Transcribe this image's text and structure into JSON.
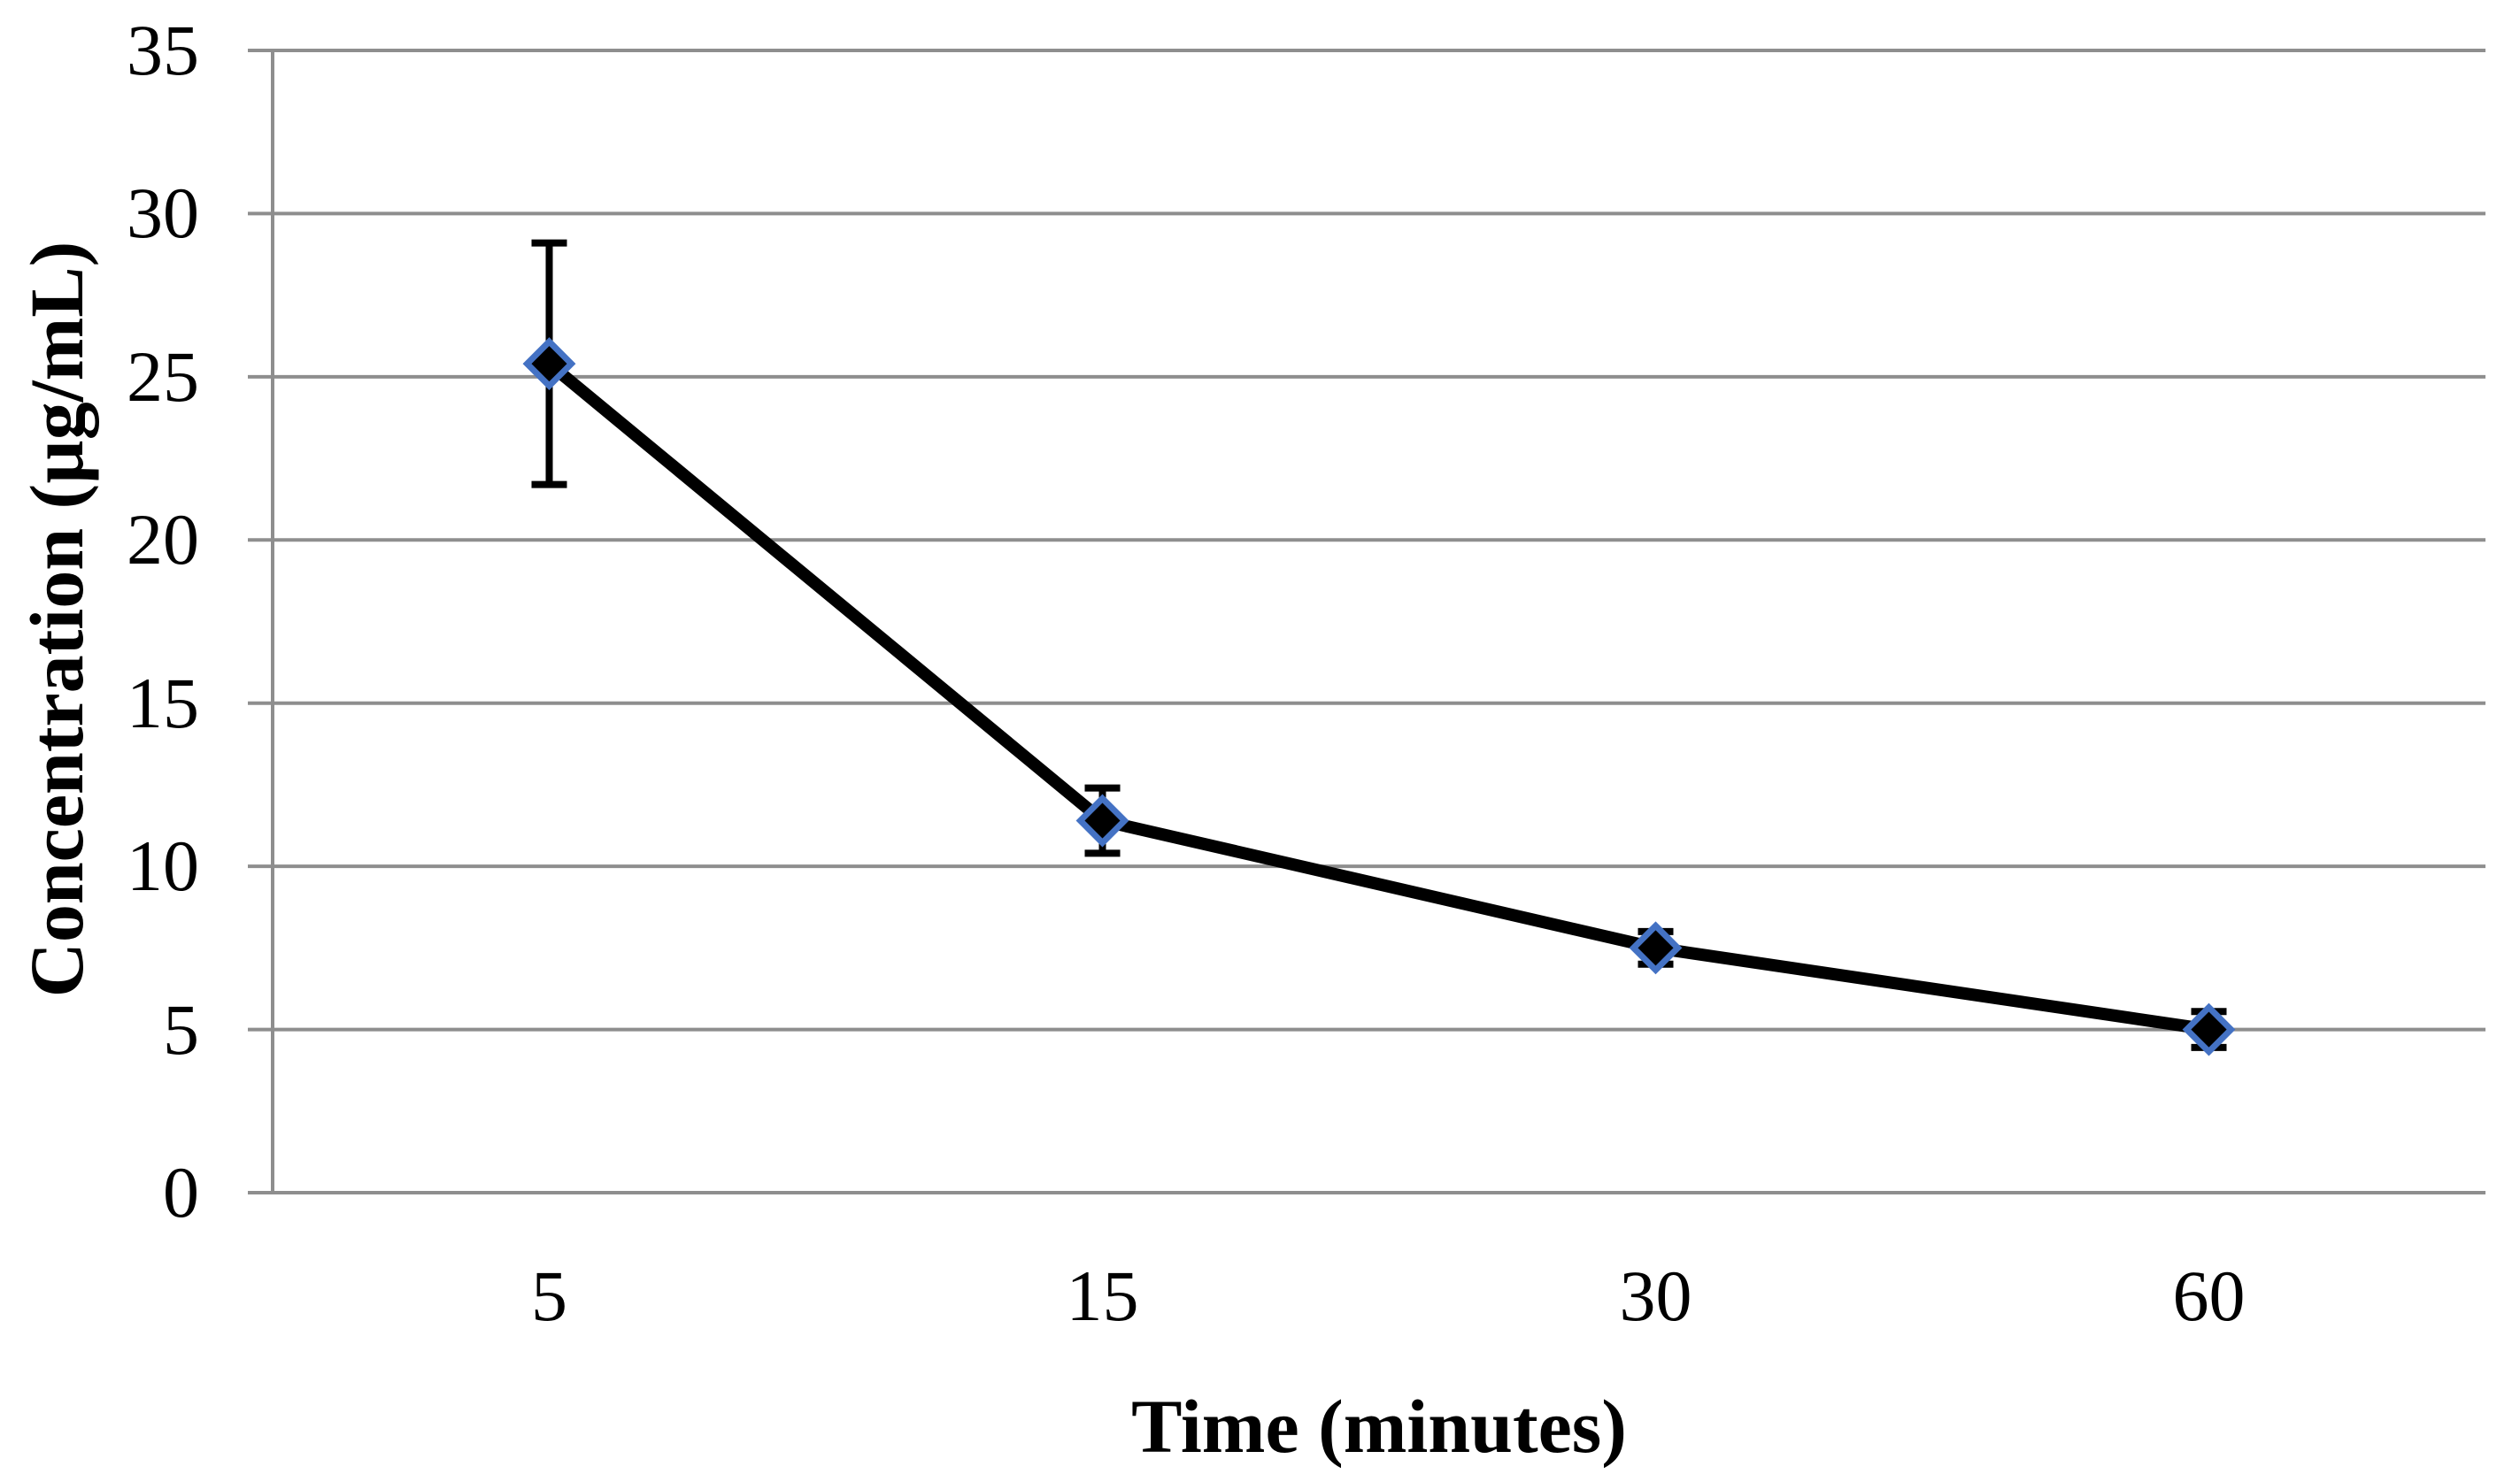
{
  "chart_data": {
    "type": "line",
    "title": "",
    "xlabel": "Time (minutes)",
    "ylabel": "Concentration (µg/mL)",
    "categories": [
      "5",
      "15",
      "30",
      "60"
    ],
    "series": [
      {
        "name": "Concentration",
        "values": [
          25.4,
          11.4,
          7.5,
          5.0
        ],
        "error_plus": [
          3.7,
          1.0,
          0.5,
          0.55
        ],
        "error_minus": [
          3.7,
          1.0,
          0.5,
          0.55
        ]
      }
    ],
    "ylim": [
      0,
      35
    ],
    "yticks": [
      0,
      5,
      10,
      15,
      20,
      25,
      30,
      35
    ],
    "grid": "horizontal-only",
    "legend": "none",
    "colors": {
      "line": "#000000",
      "marker_fill": "#000000",
      "marker_border": "#4472C4",
      "error_bar": "#000000",
      "gridline": "#8E8E8E",
      "axis_line": "#8E8E8E",
      "text": "#000000",
      "background": "#FFFFFF"
    }
  }
}
